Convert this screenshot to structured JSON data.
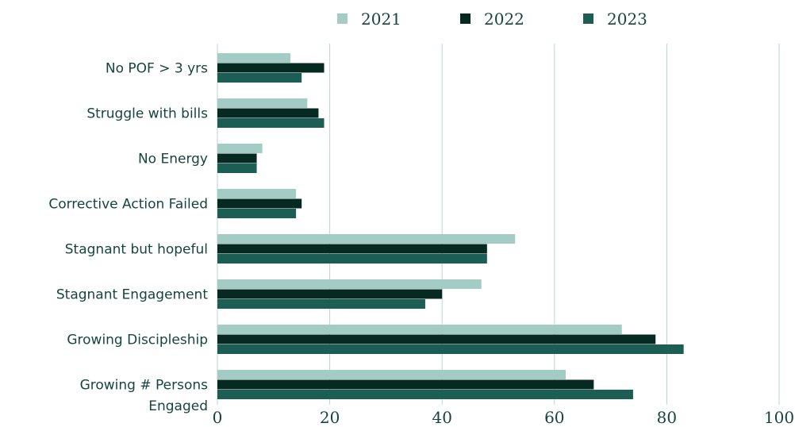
{
  "chart_data": {
    "type": "bar",
    "orientation": "horizontal",
    "categories": [
      "No POF > 3 yrs",
      "Struggle with bills",
      "No Energy",
      "Corrective Action Failed",
      "Stagnant but hopeful",
      "Stagnant Engagement",
      "Growing Discipleship",
      "Growing # Persons Engaged"
    ],
    "series": [
      {
        "name": "2021",
        "color": "#a2ccc4",
        "values": [
          13,
          16,
          8,
          14,
          53,
          47,
          72,
          62
        ]
      },
      {
        "name": "2022",
        "color": "#062a22",
        "values": [
          19,
          18,
          7,
          15,
          48,
          40,
          78,
          67
        ]
      },
      {
        "name": "2023",
        "color": "#1c5e53",
        "values": [
          15,
          19,
          7,
          14,
          48,
          37,
          83,
          74
        ]
      }
    ],
    "xlim": [
      0,
      100
    ],
    "xticks": [
      0,
      20,
      40,
      60,
      80,
      100
    ],
    "grid": true,
    "legend": "top"
  }
}
